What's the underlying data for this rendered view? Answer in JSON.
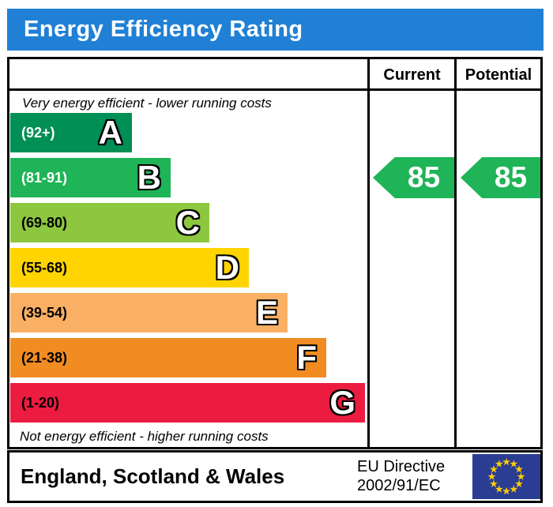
{
  "title": "Energy Efficiency Rating",
  "colors": {
    "title_bar_blue": "#2080d5",
    "border_black": "#000000",
    "arrow_green": "#1fb457",
    "eu_flag_blue": "#2b3d92",
    "eu_star_yellow": "#ffcc00"
  },
  "table": {
    "columns": {
      "current": "Current",
      "potential": "Potential"
    },
    "top_caption": "Very energy efficient - lower running costs",
    "bottom_caption": "Not energy efficient - higher running costs",
    "bands": [
      {
        "letter": "A",
        "range": "(92+)",
        "color": "#008f55",
        "text_color": "#ffffff"
      },
      {
        "letter": "B",
        "range": "(81-91)",
        "color": "#1fb457",
        "text_color": "#ffffff"
      },
      {
        "letter": "C",
        "range": "(69-80)",
        "color": "#8dc63f",
        "text_color": "#000000"
      },
      {
        "letter": "D",
        "range": "(55-68)",
        "color": "#ffd400",
        "text_color": "#000000"
      },
      {
        "letter": "E",
        "range": "(39-54)",
        "color": "#fab064",
        "text_color": "#000000"
      },
      {
        "letter": "F",
        "range": "(21-38)",
        "color": "#f18c23",
        "text_color": "#000000"
      },
      {
        "letter": "G",
        "range": "(1-20)",
        "color": "#ec1c40",
        "text_color": "#000000"
      }
    ],
    "current_value": "85",
    "potential_value": "85"
  },
  "footer": {
    "region": "England, Scotland & Wales",
    "directive_line1": "EU Directive",
    "directive_line2": "2002/91/EC"
  },
  "chart_data": {
    "type": "bar",
    "title": "Energy Efficiency Rating",
    "categories": [
      "A",
      "B",
      "C",
      "D",
      "E",
      "F",
      "G"
    ],
    "band_ranges": [
      "92+",
      "81-91",
      "69-80",
      "55-68",
      "39-54",
      "21-38",
      "1-20"
    ],
    "band_colors": [
      "#008f55",
      "#1fb457",
      "#8dc63f",
      "#ffd400",
      "#fab064",
      "#f18c23",
      "#ec1c40"
    ],
    "series": [
      {
        "name": "Current",
        "value": 85,
        "band": "B"
      },
      {
        "name": "Potential",
        "value": 85,
        "band": "B"
      }
    ],
    "scale_range": [
      1,
      100
    ],
    "annotations": [
      "Very energy efficient - lower running costs",
      "Not energy efficient - higher running costs"
    ],
    "region": "England, Scotland & Wales",
    "directive": "EU Directive 2002/91/EC"
  }
}
